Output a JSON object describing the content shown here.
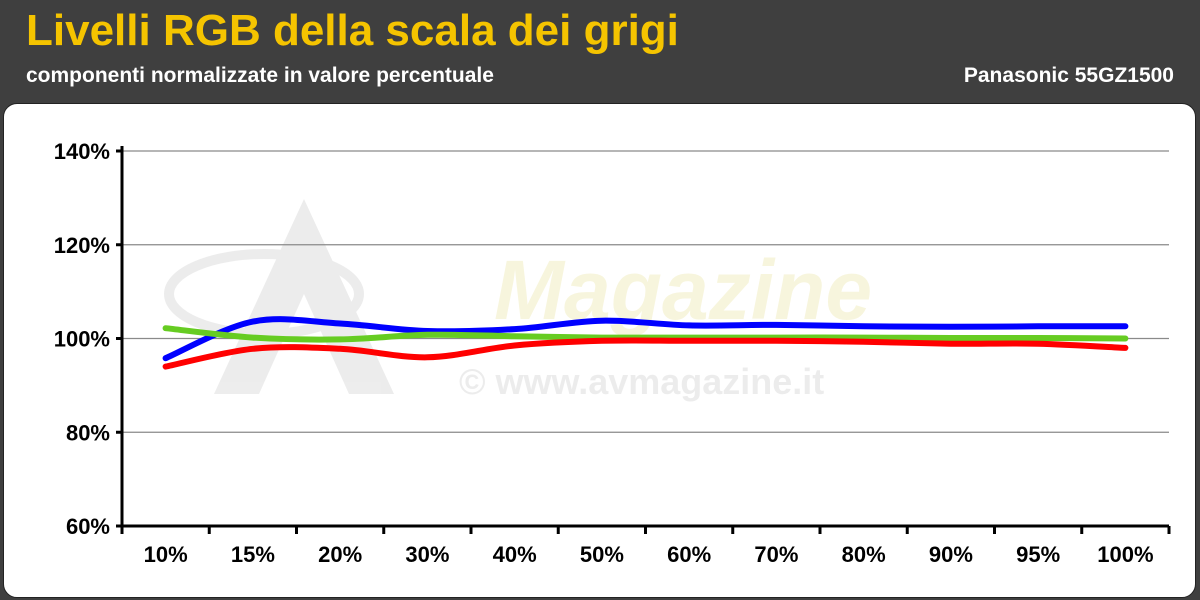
{
  "header": {
    "title": "Livelli RGB della scala dei grigi",
    "subtitle": "componenti normalizzate in valore percentuale",
    "model": "Panasonic 55GZ1500"
  },
  "watermark": {
    "brand": "Magazine",
    "url": "© www.avmagazine.it"
  },
  "colors": {
    "title": "#f5c400",
    "background": "#3f3f3f",
    "red": "#ff0000",
    "green": "#66cc22",
    "blue": "#0000ff"
  },
  "chart_data": {
    "type": "line",
    "title": "Livelli RGB della scala dei grigi",
    "subtitle": "componenti normalizzate in valore percentuale",
    "categories": [
      "10%",
      "15%",
      "20%",
      "30%",
      "40%",
      "50%",
      "60%",
      "70%",
      "80%",
      "90%",
      "95%",
      "100%"
    ],
    "ylim": [
      60,
      140
    ],
    "yticks": [
      60,
      80,
      100,
      120,
      140
    ],
    "ytick_labels": [
      "60%",
      "80%",
      "100%",
      "120%",
      "140%"
    ],
    "grid": true,
    "series": [
      {
        "color": "#0000ff",
        "values": [
          95.8,
          103.6,
          103.2,
          101.6,
          102.0,
          103.8,
          102.8,
          102.9,
          102.6,
          102.5,
          102.6,
          102.6
        ]
      },
      {
        "color": "#66cc22",
        "values": [
          102.2,
          100.2,
          99.8,
          100.8,
          100.5,
          100.2,
          100.2,
          100.2,
          100.2,
          100.1,
          100.1,
          100.0
        ]
      },
      {
        "color": "#ff0000",
        "values": [
          94.0,
          97.8,
          97.8,
          96.0,
          98.5,
          99.5,
          99.5,
          99.5,
          99.3,
          98.9,
          98.9,
          98.0
        ]
      }
    ]
  }
}
